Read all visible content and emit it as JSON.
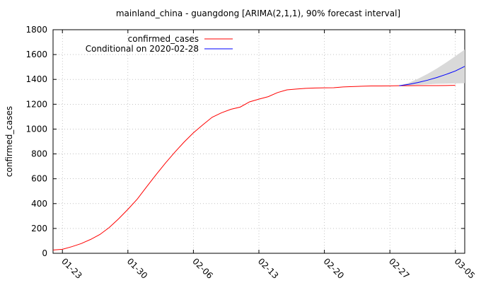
{
  "chart_data": {
    "type": "line",
    "title": "mainland_china - guangdong [ARIMA(2,1,1), 90% forecast interval]",
    "xlabel": "",
    "ylabel": "confirmed_cases",
    "ylim": [
      0,
      1800
    ],
    "yticks": [
      0,
      200,
      400,
      600,
      800,
      1000,
      1200,
      1400,
      1600,
      1800
    ],
    "xticks": [
      "01-23",
      "01-30",
      "02-06",
      "02-13",
      "02-20",
      "02-27",
      "03-05"
    ],
    "x_start": "01-22",
    "x_end": "03-06",
    "grid": true,
    "legend_position": "top-left",
    "series": [
      {
        "name": "confirmed_cases",
        "color": "#ff0000",
        "x": [
          "01-22",
          "01-23",
          "01-24",
          "01-25",
          "01-26",
          "01-27",
          "01-28",
          "01-29",
          "01-30",
          "01-31",
          "02-01",
          "02-02",
          "02-03",
          "02-04",
          "02-05",
          "02-06",
          "02-07",
          "02-08",
          "02-09",
          "02-10",
          "02-11",
          "02-12",
          "02-13",
          "02-14",
          "02-15",
          "02-16",
          "02-17",
          "02-18",
          "02-19",
          "02-20",
          "02-21",
          "02-22",
          "02-23",
          "02-24",
          "02-25",
          "02-26",
          "02-27",
          "02-28",
          "02-29",
          "03-01",
          "03-02",
          "03-03",
          "03-04",
          "03-05"
        ],
        "y": [
          26,
          32,
          53,
          78,
          111,
          151,
          207,
          277,
          354,
          436,
          535,
          632,
          725,
          813,
          895,
          970,
          1034,
          1095,
          1131,
          1159,
          1177,
          1219,
          1241,
          1261,
          1294,
          1316,
          1322,
          1328,
          1331,
          1332,
          1333,
          1339,
          1342,
          1345,
          1347,
          1347,
          1348,
          1349,
          1349,
          1350,
          1350,
          1350,
          1351,
          1352
        ]
      },
      {
        "name": "Conditional on 2020-02-28",
        "color": "#0000ff",
        "x": [
          "02-28",
          "02-29",
          "03-01",
          "03-02",
          "03-03",
          "03-04",
          "03-05",
          "03-06"
        ],
        "y": [
          1349,
          1360,
          1375,
          1393,
          1415,
          1440,
          1468,
          1505
        ]
      }
    ],
    "forecast_interval": {
      "color": "#d9d9d9",
      "x": [
        "02-28",
        "02-29",
        "03-01",
        "03-02",
        "03-03",
        "03-04",
        "03-05",
        "03-06"
      ],
      "lower": [
        1349,
        1352,
        1356,
        1360,
        1364,
        1366,
        1368,
        1370
      ],
      "upper": [
        1349,
        1372,
        1405,
        1443,
        1487,
        1535,
        1587,
        1640
      ]
    }
  }
}
